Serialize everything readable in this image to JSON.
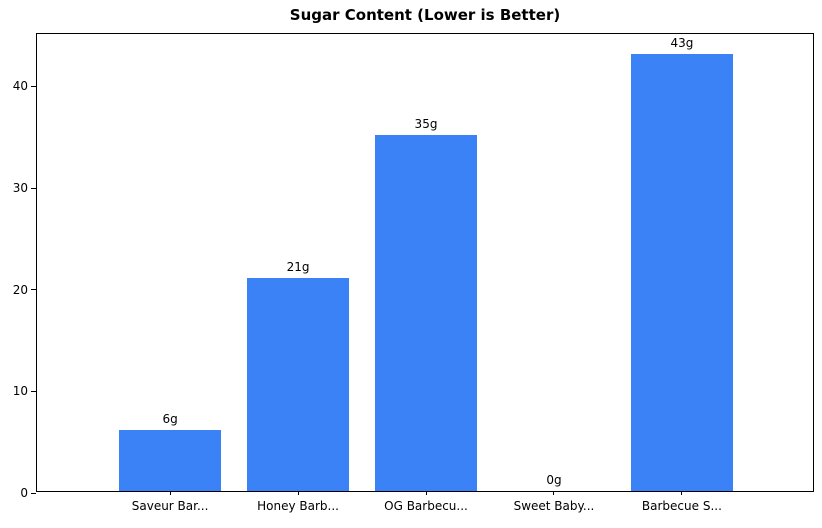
{
  "chart_data": {
    "type": "bar",
    "title": "Sugar Content (Lower is Better)",
    "categories": [
      "Saveur Bar...",
      "Honey Barb...",
      "OG Barbecu...",
      "Sweet Baby...",
      "Barbecue S..."
    ],
    "values": [
      6,
      21,
      35,
      0,
      43
    ],
    "bar_labels": [
      "6g",
      "21g",
      "35g",
      "0g",
      "43g"
    ],
    "xlabel": "",
    "ylabel": "",
    "yticks": [
      0,
      10,
      20,
      30,
      40
    ],
    "ylim": [
      0,
      45.15
    ],
    "grid": false,
    "legend": false,
    "bar_color": "#3b82f6",
    "axis_color": "#000000",
    "background_color": "#ffffff",
    "bar_width_fraction": 0.8,
    "x_margin_units": 0.64
  }
}
